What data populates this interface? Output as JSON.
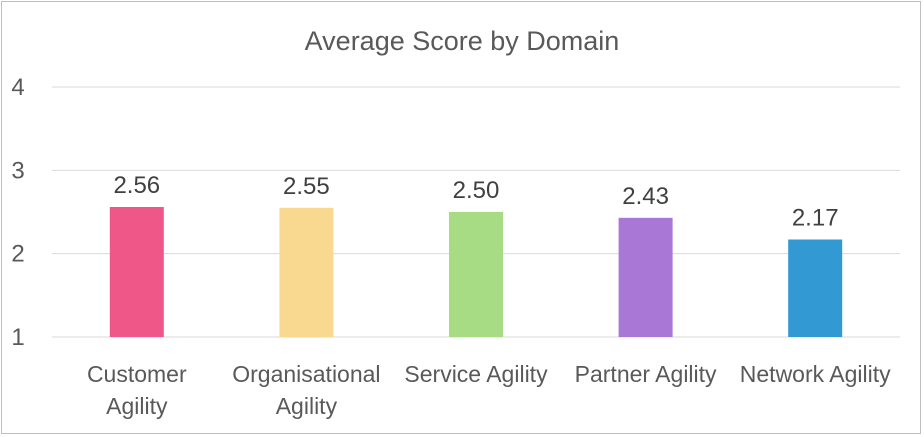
{
  "chart_data": {
    "type": "bar",
    "title": "Average Score by Domain",
    "categories": [
      [
        "Customer",
        "Agility"
      ],
      [
        "Organisational",
        "Agility"
      ],
      [
        "Service Agility"
      ],
      [
        "Partner Agility"
      ],
      [
        "Network Agility"
      ]
    ],
    "values": [
      2.56,
      2.55,
      2.5,
      2.43,
      2.17
    ],
    "data_labels": [
      "2.56",
      "2.55",
      "2.50",
      "2.43",
      "2.17"
    ],
    "colors": [
      "#ee5788",
      "#f9d98f",
      "#a7dc84",
      "#a978d6",
      "#3399d2"
    ],
    "ylim": [
      1,
      4
    ],
    "yticks": [
      1,
      2,
      3,
      4
    ],
    "ytick_labels": [
      "1",
      "2",
      "3",
      "4"
    ],
    "grid": true,
    "legend": "none"
  }
}
